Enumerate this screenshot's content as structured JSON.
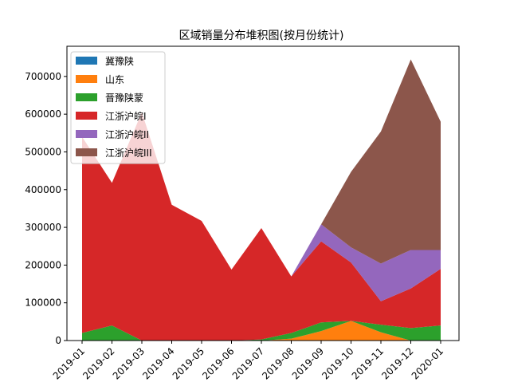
{
  "chart_data": {
    "type": "area",
    "stacked": true,
    "title": "区域销量分布堆积图(按月份统计)",
    "xlabel": "",
    "ylabel": "",
    "categories": [
      "2019-01",
      "2019-02",
      "2019-03",
      "2019-04",
      "2019-05",
      "2019-06",
      "2019-07",
      "2019-08",
      "2019-09",
      "2019-10",
      "2019-11",
      "2019-12",
      "2020-01"
    ],
    "ylim": [
      0,
      780000
    ],
    "yticks": [
      0,
      100000,
      200000,
      300000,
      400000,
      500000,
      600000,
      700000
    ],
    "legend_position": "top-left",
    "grid": false,
    "series": [
      {
        "name": "冀豫陕",
        "color": "#1f77b4",
        "values": [
          0,
          0,
          0,
          0,
          0,
          0,
          0,
          0,
          0,
          0,
          0,
          0,
          0
        ]
      },
      {
        "name": "山东",
        "color": "#ff7f0e",
        "values": [
          0,
          0,
          0,
          0,
          0,
          0,
          0,
          5000,
          25000,
          52000,
          22000,
          0,
          0
        ]
      },
      {
        "name": "晋豫陕蒙",
        "color": "#2ca02c",
        "values": [
          20000,
          40000,
          0,
          0,
          0,
          0,
          3000,
          15000,
          23000,
          0,
          20000,
          33000,
          40000
        ]
      },
      {
        "name": "江浙沪皖I",
        "color": "#d62728",
        "values": [
          520000,
          378000,
          605000,
          360000,
          317000,
          188000,
          295000,
          150000,
          215000,
          155000,
          62000,
          105000,
          150000
        ]
      },
      {
        "name": "江浙沪皖II",
        "color": "#9467bd",
        "values": [
          0,
          0,
          0,
          0,
          0,
          0,
          0,
          0,
          45000,
          40000,
          100000,
          102000,
          50000
        ]
      },
      {
        "name": "江浙沪皖III",
        "color": "#8c564b",
        "values": [
          0,
          0,
          0,
          0,
          0,
          0,
          0,
          0,
          0,
          200000,
          350000,
          505000,
          340000
        ]
      }
    ]
  }
}
